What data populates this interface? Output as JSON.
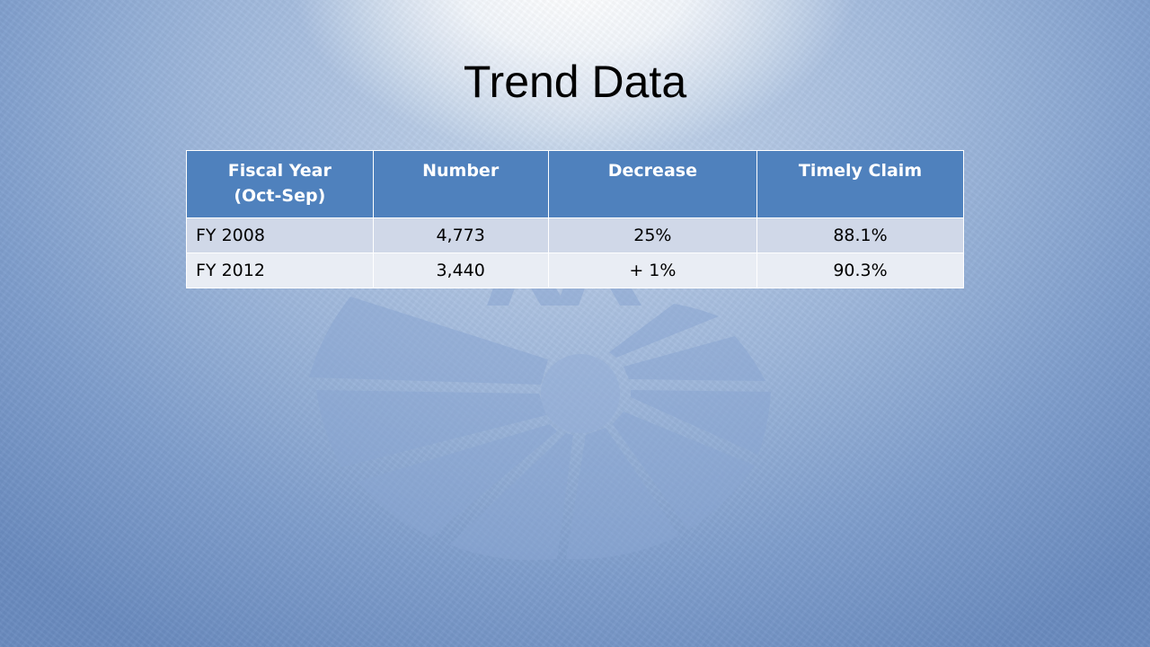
{
  "slide": {
    "title": "Trend Data"
  },
  "table": {
    "headers": [
      {
        "line1": "Fiscal Year",
        "line2": "(Oct-Sep)"
      },
      {
        "line1": "Number"
      },
      {
        "line1": "Decrease"
      },
      {
        "line1": "Timely Claim"
      }
    ],
    "rows": [
      [
        "FY 2008",
        "4,773",
        "25%",
        "88.1%"
      ],
      [
        "FY 2012",
        "3,440",
        "+ 1%",
        "90.3%"
      ]
    ]
  },
  "colors": {
    "header_bg": "#4f81bd",
    "row_odd_bg": "#d0d8e8",
    "row_even_bg": "#e9edf4",
    "background_accent": "#7e9dcc"
  },
  "icons": {
    "watermark": "segmented-circle-logo-watermark"
  }
}
